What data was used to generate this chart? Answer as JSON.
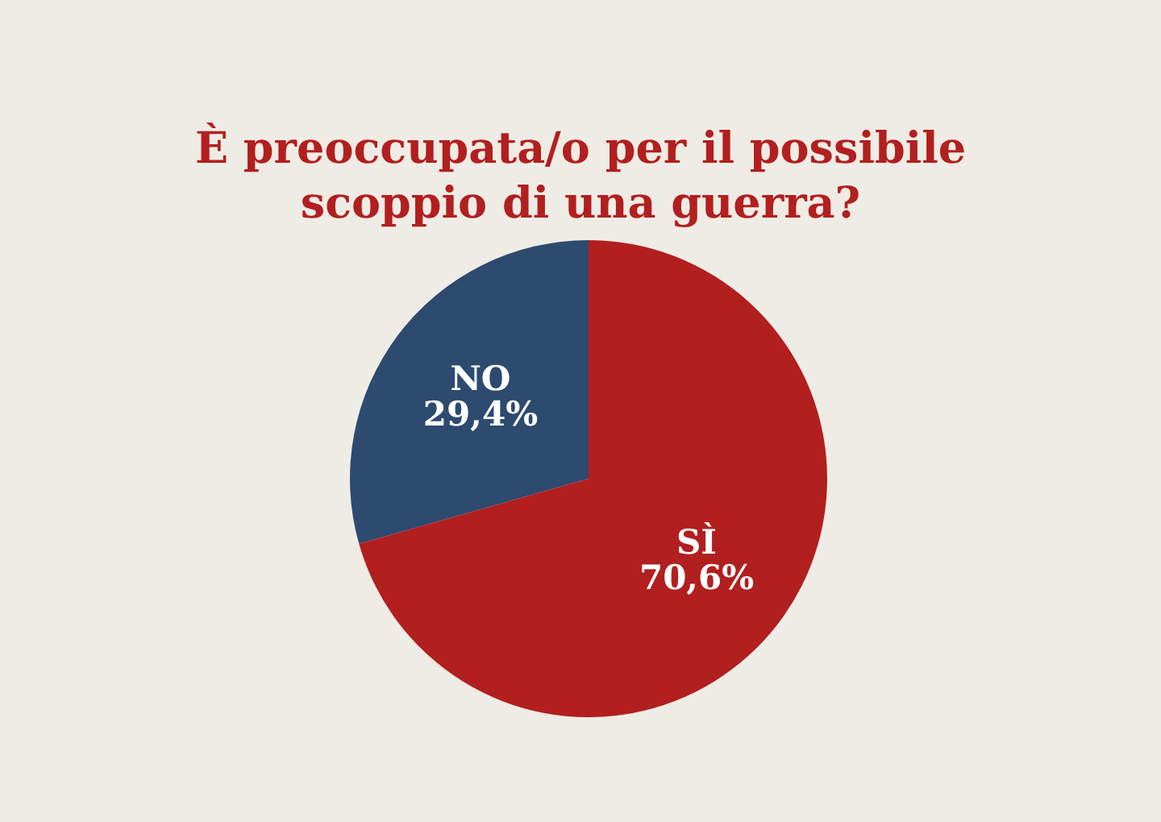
{
  "chart_data": {
    "type": "pie",
    "title": "È preoccupata/o per il possibile scoppio di una guerra?",
    "categories": [
      "NO",
      "SÌ"
    ],
    "values": [
      29.4,
      70.6
    ],
    "value_labels": [
      "29,4%",
      "70,6%"
    ],
    "colors": [
      "#2d4a6f",
      "#b21f1f"
    ]
  }
}
